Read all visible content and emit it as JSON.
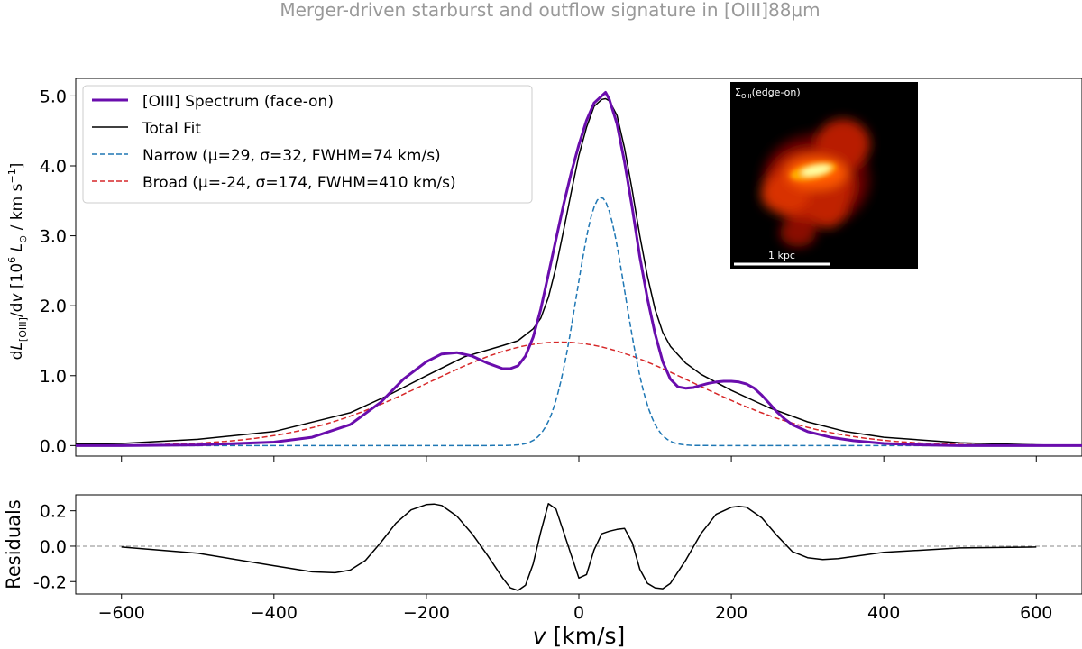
{
  "chart_data": [
    {
      "type": "line",
      "title": "Merger-driven starburst and outflow signature in [OIII]88μm",
      "ylabel": "dL[OIII]/dv [10^6 L⊙ / km s⁻¹]",
      "ylabel_parts": {
        "prefix": "d",
        "L": "L",
        "sub": "[OIII]",
        "mid": "/d",
        "v": "v",
        "bracket": " [10",
        "exp": "6",
        "lsun_unit": " L",
        "sun_sub": "⊙",
        "unit": " / km s",
        "unit_exp": "−1",
        "close": "]"
      },
      "xlim": [
        -660,
        660
      ],
      "ylim": [
        -0.15,
        5.25
      ],
      "yticks": [
        0.0,
        1.0,
        2.0,
        3.0,
        4.0,
        5.0
      ],
      "ytick_labels": [
        "0.0",
        "1.0",
        "2.0",
        "3.0",
        "4.0",
        "5.0"
      ],
      "grid": false,
      "legend_position": "top-left",
      "series": [
        {
          "name": "[OIII] Spectrum (face-on)",
          "color": "#6a0dad",
          "style": "solid",
          "x": [
            -660,
            -600,
            -500,
            -400,
            -350,
            -300,
            -260,
            -230,
            -200,
            -180,
            -160,
            -140,
            -120,
            -100,
            -90,
            -80,
            -70,
            -60,
            -50,
            -40,
            -30,
            -20,
            -10,
            0,
            10,
            20,
            30,
            35,
            40,
            50,
            60,
            70,
            80,
            90,
            100,
            110,
            120,
            130,
            140,
            150,
            160,
            170,
            180,
            190,
            200,
            210,
            220,
            230,
            240,
            250,
            260,
            270,
            280,
            300,
            330,
            360,
            400,
            450,
            500,
            550,
            600,
            660
          ],
          "y": [
            0.0,
            0.0,
            0.01,
            0.05,
            0.12,
            0.3,
            0.62,
            0.95,
            1.2,
            1.31,
            1.33,
            1.28,
            1.18,
            1.1,
            1.1,
            1.14,
            1.28,
            1.55,
            1.95,
            2.45,
            2.95,
            3.45,
            3.9,
            4.3,
            4.65,
            4.9,
            5.0,
            5.05,
            4.95,
            4.6,
            4.05,
            3.4,
            2.7,
            2.1,
            1.6,
            1.2,
            0.95,
            0.84,
            0.82,
            0.83,
            0.86,
            0.89,
            0.91,
            0.92,
            0.92,
            0.91,
            0.88,
            0.82,
            0.72,
            0.6,
            0.48,
            0.38,
            0.3,
            0.2,
            0.12,
            0.07,
            0.03,
            0.01,
            0.0,
            0.0,
            0.0,
            0.0
          ]
        },
        {
          "name": "Total Fit",
          "color": "#000000",
          "style": "solid",
          "x": [
            -660,
            -600,
            -500,
            -400,
            -300,
            -250,
            -200,
            -150,
            -100,
            -80,
            -60,
            -50,
            -40,
            -30,
            -20,
            -10,
            0,
            10,
            20,
            30,
            35,
            40,
            50,
            60,
            70,
            80,
            90,
            100,
            110,
            120,
            140,
            160,
            200,
            250,
            300,
            350,
            400,
            500,
            600,
            660
          ],
          "y": [
            0.02,
            0.03,
            0.09,
            0.2,
            0.47,
            0.72,
            1.0,
            1.27,
            1.43,
            1.5,
            1.67,
            1.82,
            2.12,
            2.55,
            3.08,
            3.62,
            4.15,
            4.55,
            4.85,
            4.95,
            4.96,
            4.93,
            4.72,
            4.25,
            3.65,
            3.0,
            2.42,
            1.95,
            1.62,
            1.42,
            1.18,
            1.02,
            0.79,
            0.54,
            0.34,
            0.2,
            0.12,
            0.04,
            0.01,
            0.0
          ]
        },
        {
          "name": "Narrow (μ=29, σ=32, FWHM=74 km/s)",
          "color": "#1f77b4",
          "style": "dashed",
          "gaussian": {
            "mu": 29,
            "sigma": 32,
            "amp": 3.55
          }
        },
        {
          "name": "Broad (μ=-24, σ=174, FWHM=410 km/s)",
          "color": "#d62728",
          "style": "dashed",
          "gaussian": {
            "mu": -24,
            "sigma": 174,
            "amp": 1.48
          }
        }
      ]
    },
    {
      "type": "line",
      "title": "",
      "ylabel": "Residuals",
      "xlabel": "v [km/s]",
      "xlabel_parts": {
        "v": "v",
        "unit": " [km/s]"
      },
      "xlim": [
        -660,
        660
      ],
      "ylim": [
        -0.27,
        0.29
      ],
      "xticks": [
        -600,
        -400,
        -200,
        0,
        200,
        400,
        600
      ],
      "xtick_labels": [
        "−600",
        "−400",
        "−200",
        "0",
        "200",
        "400",
        "600"
      ],
      "yticks": [
        -0.2,
        0.0,
        0.2
      ],
      "ytick_labels": [
        "-0.2",
        "0.0",
        "0.2"
      ],
      "reference_line": 0.0,
      "series": [
        {
          "name": "Residuals",
          "color": "#000000",
          "style": "solid",
          "x": [
            -600,
            -500,
            -400,
            -350,
            -320,
            -300,
            -280,
            -260,
            -240,
            -220,
            -200,
            -190,
            -180,
            -160,
            -140,
            -120,
            -100,
            -90,
            -80,
            -70,
            -60,
            -50,
            -40,
            -30,
            -20,
            -10,
            0,
            10,
            20,
            30,
            40,
            50,
            60,
            70,
            80,
            90,
            100,
            110,
            120,
            140,
            160,
            180,
            200,
            210,
            220,
            240,
            260,
            280,
            300,
            320,
            340,
            400,
            500,
            600
          ],
          "y": [
            -0.005,
            -0.04,
            -0.11,
            -0.145,
            -0.15,
            -0.135,
            -0.08,
            0.02,
            0.13,
            0.205,
            0.235,
            0.238,
            0.23,
            0.17,
            0.07,
            -0.05,
            -0.18,
            -0.235,
            -0.25,
            -0.22,
            -0.1,
            0.08,
            0.24,
            0.21,
            0.08,
            -0.05,
            -0.18,
            -0.16,
            -0.02,
            0.07,
            0.085,
            0.095,
            0.1,
            0.02,
            -0.13,
            -0.21,
            -0.235,
            -0.24,
            -0.21,
            -0.08,
            0.07,
            0.18,
            0.22,
            0.225,
            0.22,
            0.16,
            0.06,
            -0.03,
            -0.065,
            -0.075,
            -0.07,
            -0.035,
            -0.01,
            -0.005
          ]
        }
      ]
    }
  ],
  "inset": {
    "label": "Σ",
    "label_sub": "OIII",
    "label_suffix": "(edge-on)",
    "scalebar_label": "1 kpc",
    "background_color": "#000000",
    "colormap": [
      "#5a0000",
      "#b81a00",
      "#ff5a00",
      "#ffb000",
      "#ffffa0"
    ]
  }
}
